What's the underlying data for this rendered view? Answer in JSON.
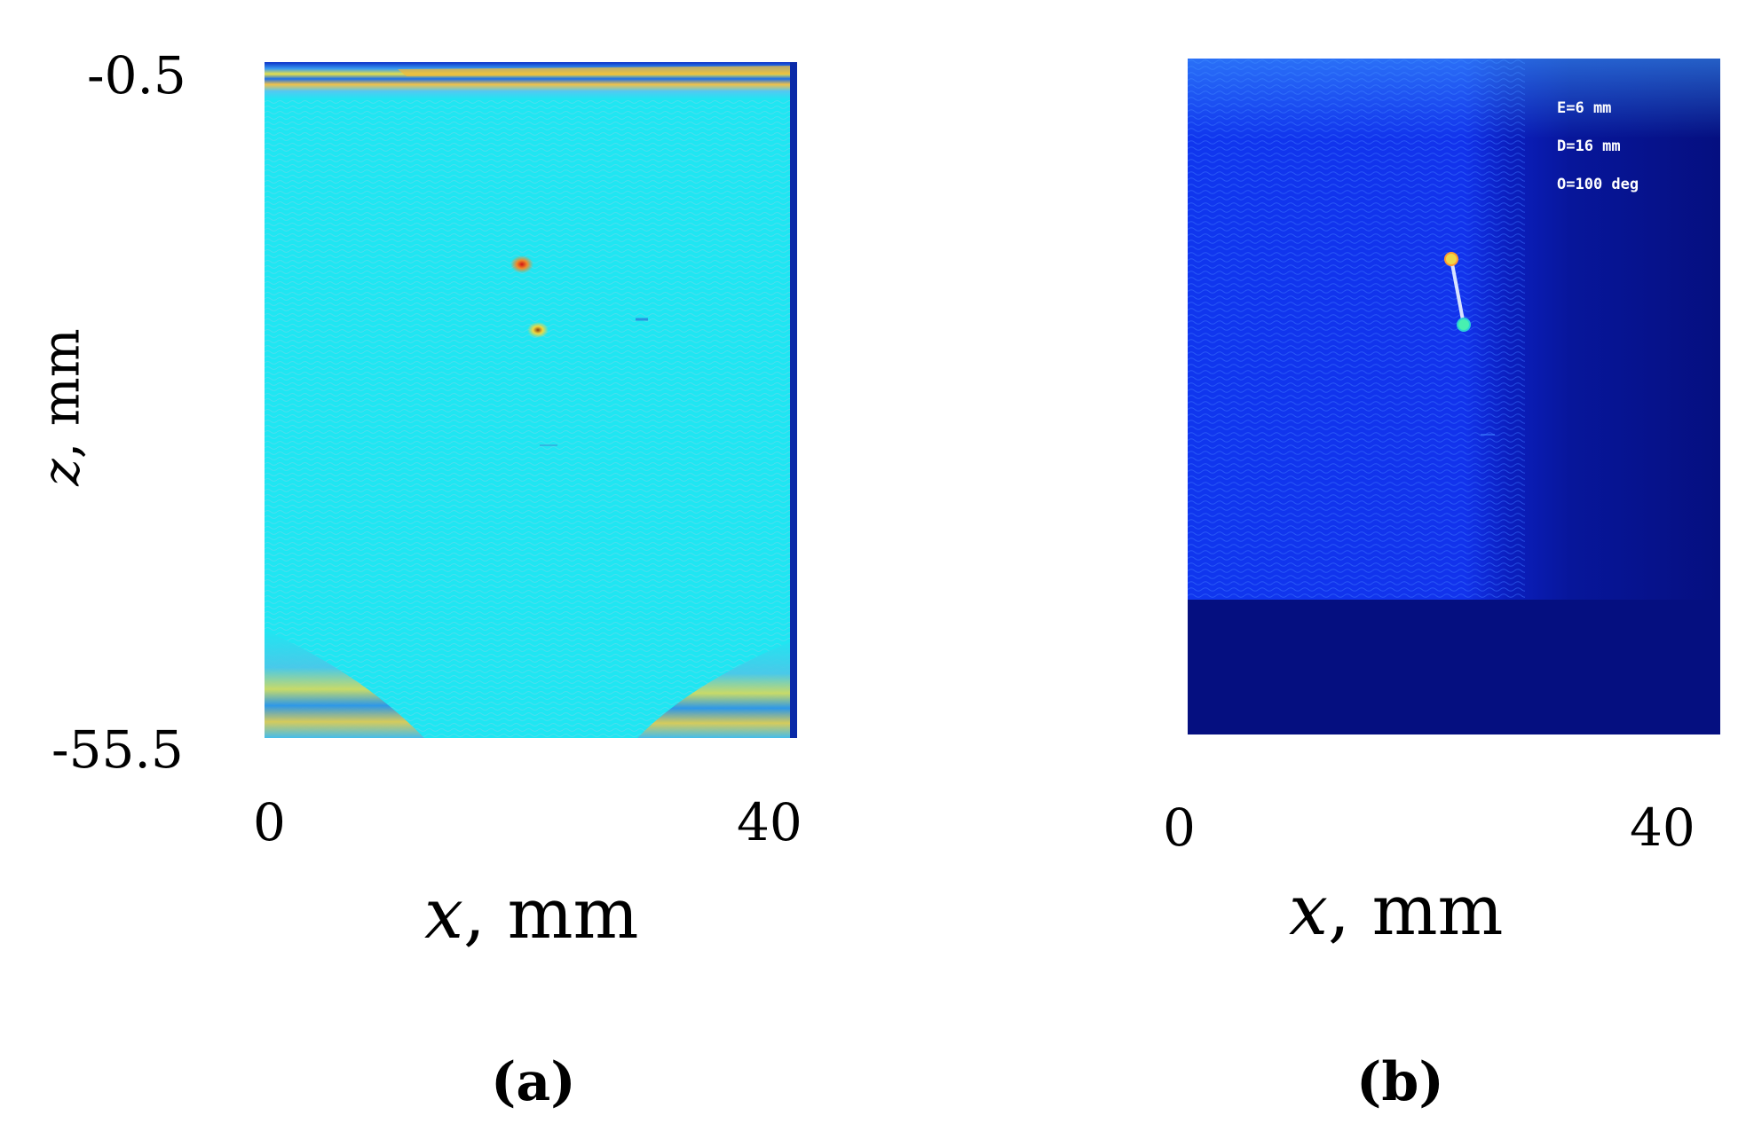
{
  "chart_data": [
    {
      "type": "heatmap",
      "panel_label": "(a)",
      "xlabel": {
        "var": "x",
        "unit": ", mm"
      },
      "ylabel": {
        "var": "z",
        "unit": ", mm"
      },
      "xlim": [
        0,
        40
      ],
      "ylim": [
        -55.5,
        -0.5
      ],
      "x_ticks": [
        "0",
        "40"
      ],
      "y_ticks": [
        "-0.5",
        "-55.5"
      ],
      "colormap": "jet",
      "background_color": "#1fe6f2",
      "features": [
        {
          "x": 19.3,
          "z": -16.9,
          "label": "upper indication"
        },
        {
          "x": 20.7,
          "z": -22.3,
          "label": "lower indication"
        }
      ]
    },
    {
      "type": "heatmap",
      "panel_label": "(b)",
      "xlabel": {
        "var": "x",
        "unit": ", mm"
      },
      "xlim": [
        0,
        40
      ],
      "ylim": [
        -55.5,
        -0.5
      ],
      "x_ticks": [
        "0",
        "40"
      ],
      "colormap": "jet",
      "background_color": "#0f2ef0",
      "annotations": [
        "E=6 mm",
        "D=16 mm",
        "O=100 deg"
      ],
      "segment": {
        "x1": 19.7,
        "z1": -16.9,
        "x2": 20.8,
        "z2": -22.6
      }
    }
  ]
}
